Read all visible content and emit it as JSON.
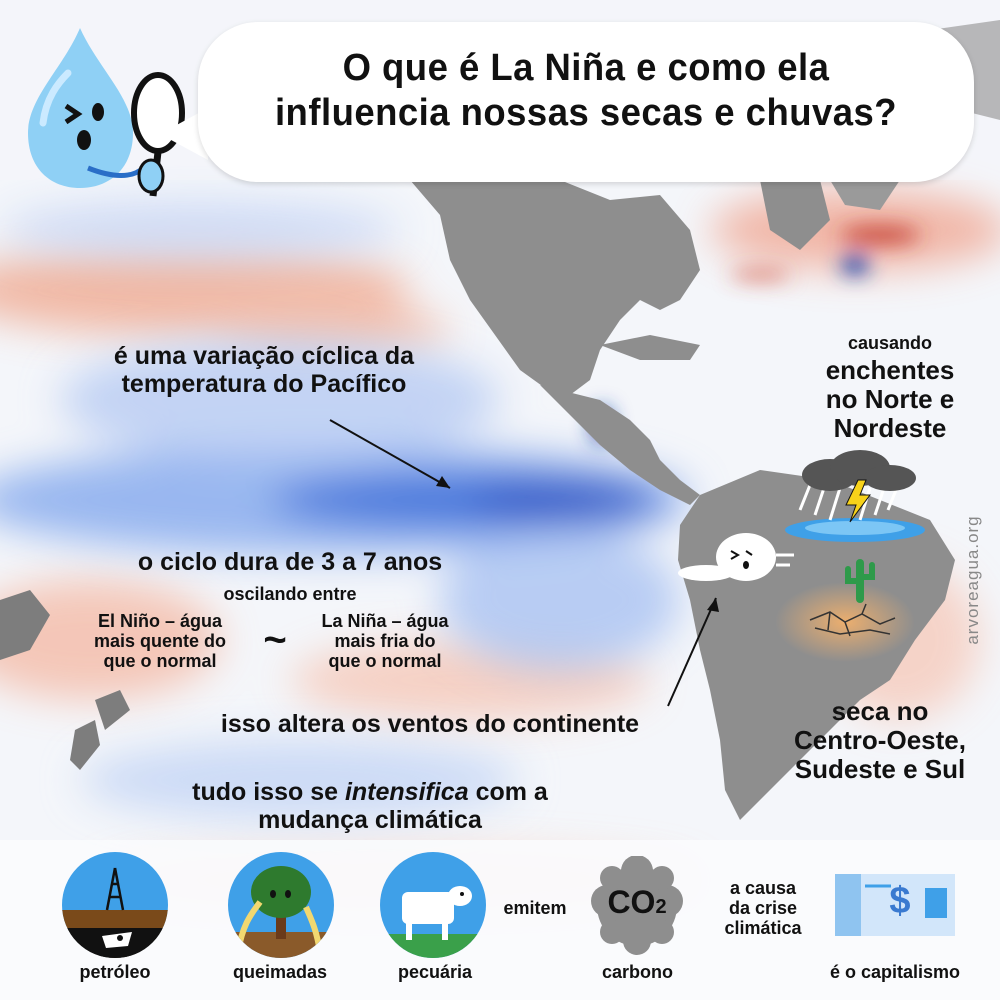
{
  "header": {
    "title_line1": "O que é La Niña e como ela",
    "title_line2": "influencia nossas secas e chuvas?"
  },
  "annotations": {
    "variacao_line1": "é uma variação cíclica da",
    "variacao_line2": "temperatura do Pacífico",
    "ciclo": "o ciclo dura de 3 a 7 anos",
    "oscilando": "oscilando entre",
    "el_nino_line1": "El Niño – água",
    "el_nino_line2": "mais quente do",
    "el_nino_line3": "que o normal",
    "tilde": "~",
    "la_nina_line1": "La Niña – água",
    "la_nina_line2": "mais fria do",
    "la_nina_line3": "que o normal",
    "ventos": "isso altera os ventos do continente",
    "intensifica_pre": "tudo isso se ",
    "intensifica_em": "intensifica",
    "intensifica_post": " com a",
    "intensifica_line2": "mudança climática",
    "causando": "causando",
    "enchentes_line1": "enchentes",
    "enchentes_line2": "no Norte e",
    "enchentes_line3": "Nordeste",
    "seca_line1": "seca no",
    "seca_line2": "Centro-Oeste,",
    "seca_line3": "Sudeste e Sul"
  },
  "credit": "arvoreagua.org",
  "bottom": {
    "petroleo": "petróleo",
    "queimadas": "queimadas",
    "pecuaria": "pecuária",
    "emitem": "emitem",
    "co2": "CO",
    "co2_sub": "2",
    "carbono": "carbono",
    "causa_line1": "a causa",
    "causa_line2": "da crise",
    "causa_line3": "climática",
    "capitalismo": "é o capitalismo",
    "dollar": "$"
  },
  "colors": {
    "cold": "#2f5fd0",
    "warm": "#e06a4a",
    "land": "#8e8e8e",
    "drop": "#8fd0f5"
  },
  "icons": [
    "water-drop-mascot-icon",
    "magnifying-glass-icon",
    "storm-cloud-icon",
    "lightning-icon",
    "wind-cloud-icon",
    "cactus-icon",
    "cracked-ground-icon",
    "oil-derrick-icon",
    "burning-tree-icon",
    "cow-icon",
    "co2-cloud-icon",
    "banknote-icon"
  ]
}
